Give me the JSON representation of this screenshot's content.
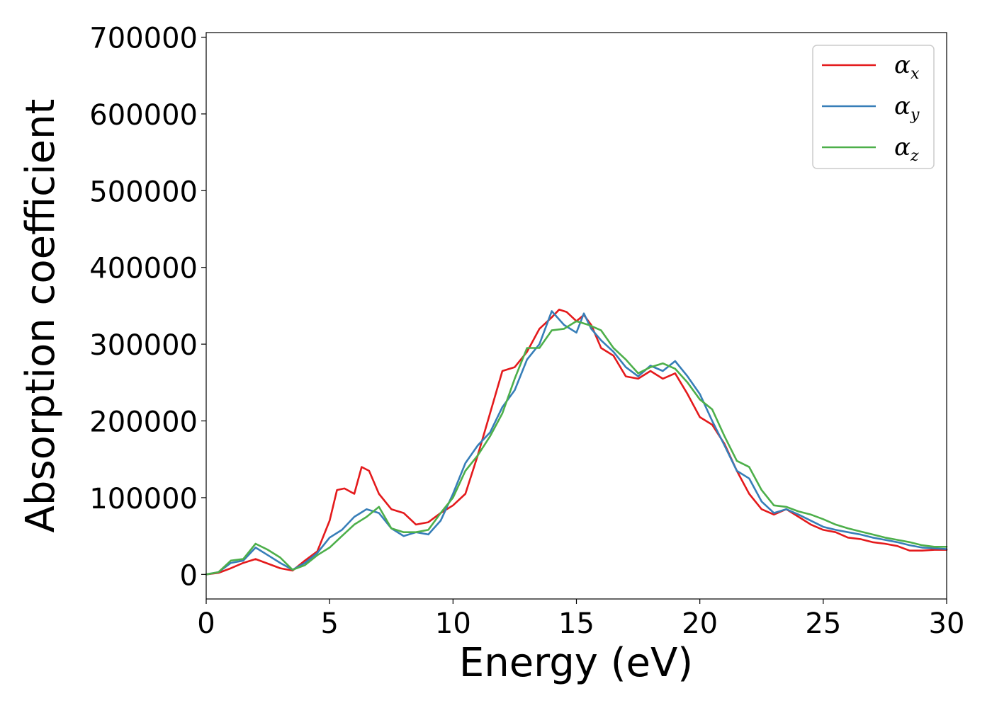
{
  "chart_data": {
    "type": "line",
    "title": "",
    "xlabel": "Energy (eV)",
    "ylabel": "Absorption coefficient",
    "xlim": [
      0,
      30
    ],
    "ylim": [
      -32000,
      706000
    ],
    "xticks": [
      0,
      5,
      10,
      15,
      20,
      25,
      30
    ],
    "yticks": [
      0,
      100000,
      200000,
      300000,
      400000,
      500000,
      600000,
      700000
    ],
    "grid": false,
    "legend_position": "top-right",
    "series": [
      {
        "name": "α_x",
        "symbol": "α",
        "subscript": "x",
        "color": "#e41a1c",
        "x": [
          0,
          0.5,
          1.0,
          1.5,
          2.0,
          2.5,
          3.0,
          3.5,
          4.0,
          4.5,
          5.0,
          5.3,
          5.6,
          6.0,
          6.3,
          6.6,
          7.0,
          7.5,
          8.0,
          8.5,
          9.0,
          9.5,
          10.0,
          10.5,
          11.0,
          11.5,
          12.0,
          12.5,
          13.0,
          13.5,
          14.0,
          14.3,
          14.6,
          15.0,
          15.3,
          15.6,
          16.0,
          16.5,
          17.0,
          17.5,
          18.0,
          18.5,
          19.0,
          19.5,
          20.0,
          20.5,
          21.0,
          21.5,
          22.0,
          22.5,
          23.0,
          23.5,
          24.0,
          24.5,
          25.0,
          25.5,
          26.0,
          26.5,
          27.0,
          27.5,
          28.0,
          28.5,
          29.0,
          29.5,
          30.0
        ],
        "y": [
          0,
          2000,
          8000,
          15000,
          20000,
          14000,
          8000,
          5000,
          18000,
          30000,
          70000,
          110000,
          112000,
          105000,
          140000,
          135000,
          105000,
          85000,
          80000,
          65000,
          68000,
          80000,
          90000,
          105000,
          155000,
          210000,
          265000,
          270000,
          290000,
          320000,
          335000,
          345000,
          342000,
          330000,
          338000,
          325000,
          295000,
          285000,
          258000,
          255000,
          265000,
          255000,
          262000,
          235000,
          205000,
          195000,
          170000,
          135000,
          105000,
          85000,
          78000,
          85000,
          75000,
          65000,
          58000,
          55000,
          48000,
          46000,
          42000,
          40000,
          37000,
          31000,
          31000,
          32000,
          32000
        ]
      },
      {
        "name": "α_y",
        "symbol": "α",
        "subscript": "y",
        "color": "#377eb8",
        "x": [
          0,
          0.5,
          1.0,
          1.5,
          2.0,
          2.5,
          3.0,
          3.5,
          4.0,
          4.5,
          5.0,
          5.5,
          6.0,
          6.5,
          7.0,
          7.5,
          8.0,
          8.5,
          9.0,
          9.5,
          10.0,
          10.5,
          11.0,
          11.5,
          12.0,
          12.5,
          13.0,
          13.5,
          14.0,
          14.5,
          15.0,
          15.3,
          15.6,
          16.0,
          16.5,
          17.0,
          17.5,
          18.0,
          18.5,
          19.0,
          19.5,
          20.0,
          20.5,
          21.0,
          21.5,
          22.0,
          22.5,
          23.0,
          23.5,
          24.0,
          24.5,
          25.0,
          25.5,
          26.0,
          26.5,
          27.0,
          27.5,
          28.0,
          28.5,
          29.0,
          29.5,
          30.0
        ],
        "y": [
          0,
          3000,
          15000,
          18000,
          35000,
          25000,
          15000,
          6000,
          15000,
          28000,
          48000,
          58000,
          75000,
          85000,
          80000,
          60000,
          50000,
          55000,
          52000,
          70000,
          105000,
          145000,
          168000,
          185000,
          218000,
          240000,
          280000,
          300000,
          343000,
          325000,
          315000,
          340000,
          320000,
          305000,
          290000,
          270000,
          258000,
          272000,
          265000,
          278000,
          258000,
          235000,
          200000,
          168000,
          135000,
          125000,
          95000,
          80000,
          85000,
          78000,
          70000,
          62000,
          58000,
          55000,
          52000,
          48000,
          45000,
          42000,
          38000,
          35000,
          34000,
          33000
        ]
      },
      {
        "name": "α_z",
        "symbol": "α",
        "subscript": "z",
        "color": "#4daf4a",
        "x": [
          0,
          0.5,
          1.0,
          1.5,
          2.0,
          2.5,
          3.0,
          3.5,
          4.0,
          4.5,
          5.0,
          5.5,
          6.0,
          6.5,
          7.0,
          7.5,
          8.0,
          8.5,
          9.0,
          9.5,
          10.0,
          10.5,
          11.0,
          11.5,
          12.0,
          12.5,
          13.0,
          13.5,
          14.0,
          14.5,
          15.0,
          15.5,
          16.0,
          16.5,
          17.0,
          17.5,
          18.0,
          18.5,
          19.0,
          19.5,
          20.0,
          20.5,
          21.0,
          21.5,
          22.0,
          22.5,
          23.0,
          23.5,
          24.0,
          24.5,
          25.0,
          25.5,
          26.0,
          26.5,
          27.0,
          27.5,
          28.0,
          28.5,
          29.0,
          29.5,
          30.0
        ],
        "y": [
          0,
          3000,
          18000,
          20000,
          40000,
          32000,
          22000,
          6000,
          12000,
          25000,
          35000,
          50000,
          65000,
          75000,
          88000,
          60000,
          55000,
          55000,
          58000,
          80000,
          100000,
          135000,
          155000,
          180000,
          210000,
          255000,
          295000,
          295000,
          318000,
          320000,
          330000,
          325000,
          318000,
          295000,
          280000,
          262000,
          270000,
          275000,
          268000,
          250000,
          228000,
          215000,
          180000,
          148000,
          140000,
          110000,
          90000,
          88000,
          82000,
          78000,
          72000,
          65000,
          60000,
          56000,
          52000,
          48000,
          45000,
          42000,
          38000,
          36000,
          36000
        ]
      }
    ]
  }
}
